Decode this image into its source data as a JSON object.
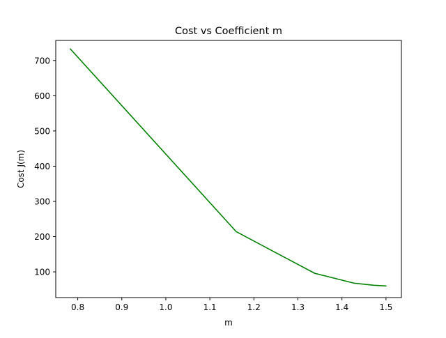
{
  "chart_data": {
    "type": "line",
    "title": "Cost vs Coefficient m",
    "xlabel": "m",
    "ylabel": "Cost J(m)",
    "xlim": [
      0.75,
      1.535
    ],
    "ylim": [
      27,
      757
    ],
    "xticks": [
      0.8,
      0.9,
      1.0,
      1.1,
      1.2,
      1.3,
      1.4,
      1.5
    ],
    "xtick_labels": [
      "0.8",
      "0.9",
      "1.0",
      "1.1",
      "1.2",
      "1.3",
      "1.4",
      "1.5"
    ],
    "yticks": [
      100,
      200,
      300,
      400,
      500,
      600,
      700
    ],
    "ytick_labels": [
      "100",
      "200",
      "300",
      "400",
      "500",
      "600",
      "700"
    ],
    "grid": false,
    "series": [
      {
        "color": "#008000",
        "x": [
          0.783,
          1.16,
          1.338,
          1.427,
          1.472,
          1.5
        ],
        "y": [
          733,
          214,
          96,
          68,
          62,
          60
        ]
      }
    ]
  }
}
